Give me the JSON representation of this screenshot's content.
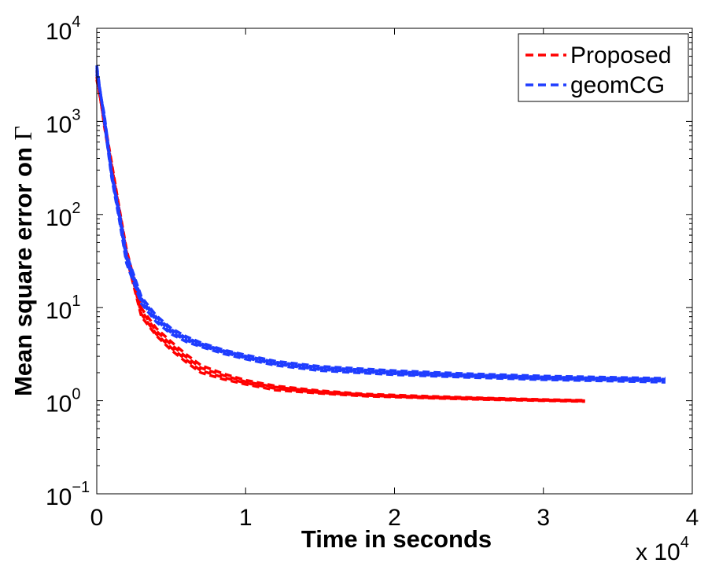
{
  "chart_data": {
    "type": "line",
    "title": "",
    "xlabel": "Time in seconds",
    "ylabel_text": "Mean square error on",
    "ylabel_symbol": "Γ",
    "x_multiplier": {
      "prefix": "x 10",
      "exponent": "4"
    },
    "xlim": [
      0,
      4
    ],
    "ylim_log10": [
      -1,
      4
    ],
    "y_scale": "log",
    "x_ticks": [
      0,
      1,
      2,
      3,
      4
    ],
    "x_tick_labels": [
      "0",
      "1",
      "2",
      "3",
      "4"
    ],
    "y_ticks": [
      {
        "exp": -1,
        "base": "10",
        "sup": "−1"
      },
      {
        "exp": 0,
        "base": "10",
        "sup": "0"
      },
      {
        "exp": 1,
        "base": "10",
        "sup": "1"
      },
      {
        "exp": 2,
        "base": "10",
        "sup": "2"
      },
      {
        "exp": 3,
        "base": "10",
        "sup": "3"
      },
      {
        "exp": 4,
        "base": "10",
        "sup": "4"
      }
    ],
    "legend": {
      "placement": "top-right"
    },
    "series": [
      {
        "name": "Proposed",
        "color": "#ff0000",
        "runs": [
          [
            [
              0.0,
              3500
            ],
            [
              0.05,
              900
            ],
            [
              0.1,
              300
            ],
            [
              0.15,
              100
            ],
            [
              0.2,
              35
            ],
            [
              0.3,
              8
            ],
            [
              0.4,
              5
            ],
            [
              0.5,
              3.5
            ],
            [
              0.6,
              2.6
            ],
            [
              0.7,
              2.0
            ],
            [
              0.85,
              1.7
            ],
            [
              1.0,
              1.5
            ],
            [
              1.2,
              1.3
            ],
            [
              1.5,
              1.2
            ],
            [
              1.8,
              1.12
            ],
            [
              2.2,
              1.07
            ],
            [
              2.6,
              1.03
            ],
            [
              3.0,
              1.0
            ],
            [
              3.28,
              0.98
            ]
          ],
          [
            [
              0.0,
              3200
            ],
            [
              0.05,
              950
            ],
            [
              0.1,
              320
            ],
            [
              0.15,
              110
            ],
            [
              0.2,
              38
            ],
            [
              0.3,
              8.5
            ],
            [
              0.4,
              5.2
            ],
            [
              0.5,
              3.7
            ],
            [
              0.6,
              2.75
            ],
            [
              0.7,
              2.1
            ],
            [
              0.85,
              1.78
            ],
            [
              1.0,
              1.55
            ],
            [
              1.2,
              1.35
            ],
            [
              1.5,
              1.22
            ],
            [
              1.8,
              1.14
            ],
            [
              2.2,
              1.08
            ],
            [
              2.6,
              1.04
            ],
            [
              3.0,
              1.01
            ],
            [
              3.28,
              0.99
            ]
          ],
          [
            [
              0.0,
              3000
            ],
            [
              0.05,
              1000
            ],
            [
              0.1,
              340
            ],
            [
              0.15,
              115
            ],
            [
              0.2,
              40
            ],
            [
              0.3,
              9.2
            ],
            [
              0.4,
              5.6
            ],
            [
              0.5,
              4.0
            ],
            [
              0.6,
              2.95
            ],
            [
              0.7,
              2.25
            ],
            [
              0.85,
              1.87
            ],
            [
              1.0,
              1.6
            ],
            [
              1.2,
              1.4
            ],
            [
              1.5,
              1.25
            ],
            [
              1.8,
              1.16
            ],
            [
              2.2,
              1.1
            ],
            [
              2.6,
              1.06
            ],
            [
              3.0,
              1.02
            ],
            [
              3.28,
              1.0
            ]
          ],
          [
            [
              0.0,
              2800
            ],
            [
              0.05,
              1050
            ],
            [
              0.1,
              360
            ],
            [
              0.15,
              120
            ],
            [
              0.2,
              42
            ],
            [
              0.3,
              9.8
            ],
            [
              0.4,
              6.0
            ],
            [
              0.5,
              4.3
            ],
            [
              0.6,
              3.15
            ],
            [
              0.7,
              2.4
            ],
            [
              0.85,
              1.95
            ],
            [
              1.0,
              1.66
            ],
            [
              1.2,
              1.44
            ],
            [
              1.5,
              1.28
            ],
            [
              1.8,
              1.18
            ],
            [
              2.2,
              1.12
            ],
            [
              2.6,
              1.07
            ],
            [
              3.0,
              1.03
            ],
            [
              3.28,
              1.01
            ]
          ]
        ]
      },
      {
        "name": "geomCG",
        "color": "#1f3dff",
        "runs": [
          [
            [
              0.0,
              4000
            ],
            [
              0.05,
              1000
            ],
            [
              0.1,
              250
            ],
            [
              0.15,
              90
            ],
            [
              0.2,
              30
            ],
            [
              0.3,
              11
            ],
            [
              0.4,
              7
            ],
            [
              0.5,
              5.2
            ],
            [
              0.6,
              4.3
            ],
            [
              0.7,
              3.8
            ],
            [
              0.85,
              3.2
            ],
            [
              1.0,
              2.8
            ],
            [
              1.2,
              2.4
            ],
            [
              1.5,
              2.1
            ],
            [
              2.0,
              1.9
            ],
            [
              2.5,
              1.78
            ],
            [
              3.0,
              1.68
            ],
            [
              3.5,
              1.62
            ],
            [
              3.82,
              1.58
            ]
          ],
          [
            [
              0.0,
              3800
            ],
            [
              0.05,
              1050
            ],
            [
              0.1,
              260
            ],
            [
              0.15,
              95
            ],
            [
              0.2,
              32
            ],
            [
              0.3,
              11.5
            ],
            [
              0.4,
              7.3
            ],
            [
              0.5,
              5.4
            ],
            [
              0.6,
              4.45
            ],
            [
              0.7,
              3.9
            ],
            [
              0.85,
              3.3
            ],
            [
              1.0,
              2.88
            ],
            [
              1.2,
              2.47
            ],
            [
              1.5,
              2.16
            ],
            [
              2.0,
              1.95
            ],
            [
              2.5,
              1.82
            ],
            [
              3.0,
              1.72
            ],
            [
              3.5,
              1.66
            ],
            [
              3.82,
              1.62
            ]
          ],
          [
            [
              0.0,
              3600
            ],
            [
              0.05,
              1100
            ],
            [
              0.1,
              270
            ],
            [
              0.15,
              100
            ],
            [
              0.2,
              34
            ],
            [
              0.3,
              12
            ],
            [
              0.4,
              7.6
            ],
            [
              0.5,
              5.6
            ],
            [
              0.6,
              4.6
            ],
            [
              0.7,
              4.0
            ],
            [
              0.85,
              3.38
            ],
            [
              1.0,
              2.95
            ],
            [
              1.2,
              2.53
            ],
            [
              1.5,
              2.22
            ],
            [
              2.0,
              2.0
            ],
            [
              2.5,
              1.86
            ],
            [
              3.0,
              1.76
            ],
            [
              3.5,
              1.7
            ],
            [
              3.82,
              1.66
            ]
          ],
          [
            [
              0.0,
              3400
            ],
            [
              0.05,
              1150
            ],
            [
              0.1,
              280
            ],
            [
              0.15,
              105
            ],
            [
              0.2,
              36
            ],
            [
              0.3,
              12.5
            ],
            [
              0.4,
              7.9
            ],
            [
              0.5,
              5.8
            ],
            [
              0.6,
              4.75
            ],
            [
              0.7,
              4.1
            ],
            [
              0.85,
              3.45
            ],
            [
              1.0,
              3.02
            ],
            [
              1.2,
              2.6
            ],
            [
              1.5,
              2.28
            ],
            [
              2.0,
              2.05
            ],
            [
              2.5,
              1.9
            ],
            [
              3.0,
              1.8
            ],
            [
              3.5,
              1.74
            ],
            [
              3.82,
              1.7
            ]
          ],
          [
            [
              0.0,
              3200
            ],
            [
              0.05,
              1200
            ],
            [
              0.1,
              290
            ],
            [
              0.15,
              110
            ],
            [
              0.2,
              38
            ],
            [
              0.3,
              13
            ],
            [
              0.4,
              8.2
            ],
            [
              0.5,
              6.0
            ],
            [
              0.6,
              4.9
            ],
            [
              0.7,
              4.2
            ],
            [
              0.85,
              3.52
            ],
            [
              1.0,
              3.1
            ],
            [
              1.2,
              2.66
            ],
            [
              1.5,
              2.34
            ],
            [
              2.0,
              2.1
            ],
            [
              2.5,
              1.95
            ],
            [
              3.0,
              1.84
            ],
            [
              3.5,
              1.78
            ],
            [
              3.82,
              1.74
            ]
          ]
        ]
      }
    ]
  }
}
